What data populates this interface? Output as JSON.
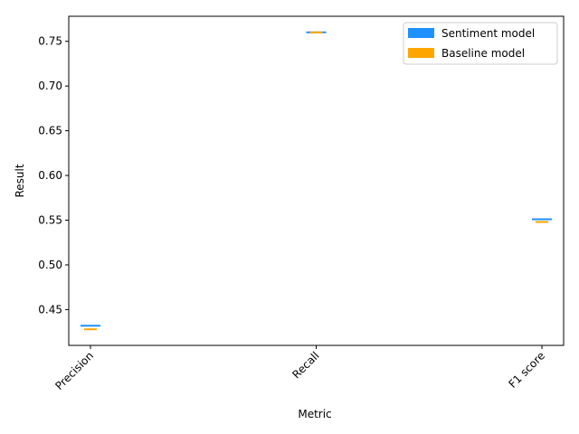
{
  "chart_data": {
    "type": "line",
    "xlabel": "Metric",
    "ylabel": "Result",
    "categories": [
      "Precision",
      "Recall",
      "F1 score"
    ],
    "ylim": [
      0.41,
      0.778
    ],
    "yticks": [
      "0.45",
      "0.50",
      "0.55",
      "0.60",
      "0.65",
      "0.70",
      "0.75"
    ],
    "series": [
      {
        "name": "Sentiment model",
        "color": "#1e90ff",
        "values": [
          0.432,
          0.76,
          0.551
        ]
      },
      {
        "name": "Baseline model",
        "color": "#ffa500",
        "values": [
          0.428,
          0.76,
          0.548
        ]
      }
    ],
    "legend": "top-right",
    "grid": false
  }
}
